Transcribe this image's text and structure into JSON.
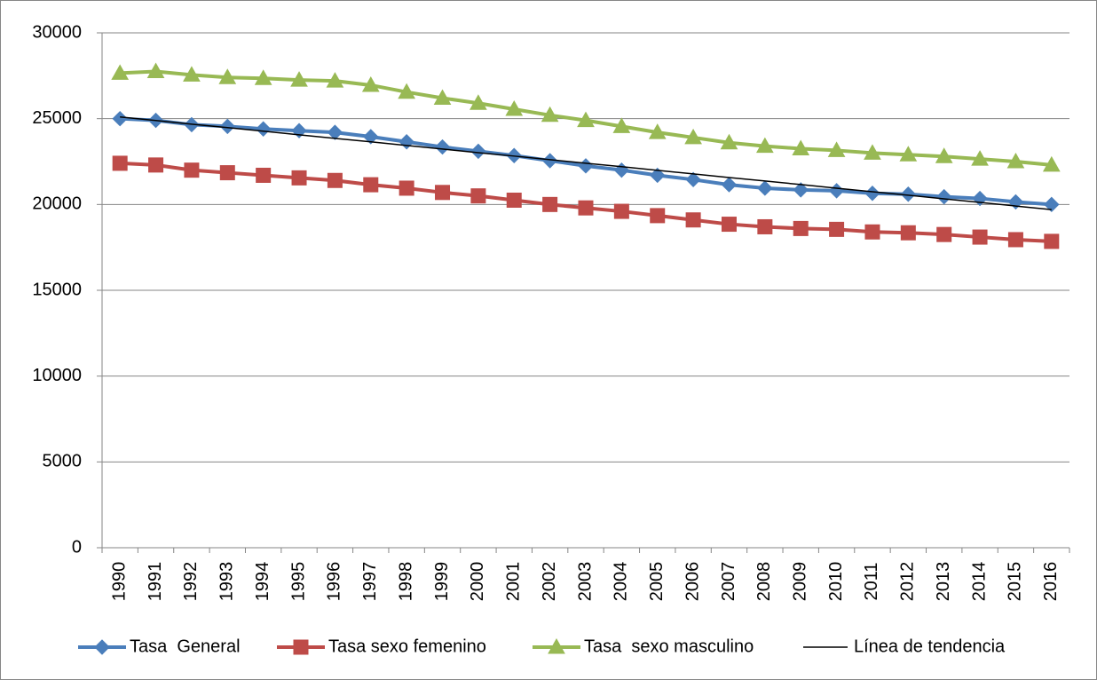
{
  "chart_data": {
    "type": "line",
    "categories": [
      "1990",
      "1991",
      "1992",
      "1993",
      "1994",
      "1995",
      "1996",
      "1997",
      "1998",
      "1999",
      "2000",
      "2001",
      "2002",
      "2003",
      "2004",
      "2005",
      "2006",
      "2007",
      "2008",
      "2009",
      "2010",
      "2011",
      "2012",
      "2013",
      "2014",
      "2015",
      "2016"
    ],
    "series": [
      {
        "name": "Tasa  General",
        "color": "#4a7ebb",
        "marker": "diamond",
        "values": [
          25000,
          24900,
          24650,
          24550,
          24400,
          24300,
          24200,
          23950,
          23650,
          23350,
          23100,
          22850,
          22550,
          22250,
          22000,
          21700,
          21450,
          21150,
          20950,
          20850,
          20800,
          20650,
          20600,
          20450,
          20350,
          20150,
          20000
        ]
      },
      {
        "name": "Tasa sexo femenino",
        "color": "#be4b48",
        "marker": "square",
        "values": [
          22400,
          22300,
          22000,
          21850,
          21700,
          21550,
          21400,
          21150,
          20950,
          20700,
          20500,
          20250,
          20000,
          19800,
          19600,
          19350,
          19100,
          18850,
          18700,
          18600,
          18550,
          18400,
          18350,
          18250,
          18100,
          17950,
          17850
        ]
      },
      {
        "name": "Tasa  sexo masculino",
        "color": "#98b954",
        "marker": "triangle",
        "values": [
          27650,
          27750,
          27550,
          27400,
          27350,
          27250,
          27200,
          26950,
          26550,
          26200,
          25900,
          25550,
          25200,
          24900,
          24550,
          24200,
          23900,
          23600,
          23400,
          23250,
          23150,
          23000,
          22900,
          22800,
          22650,
          22500,
          22300
        ]
      },
      {
        "name": "Línea de tendencia",
        "color": "#000000",
        "marker": "none",
        "values": [
          25100,
          24890,
          24680,
          24480,
          24270,
          24060,
          23850,
          23650,
          23440,
          23230,
          23020,
          22820,
          22610,
          22400,
          22200,
          21990,
          21780,
          21570,
          21370,
          21160,
          20950,
          20740,
          20540,
          20330,
          20120,
          19910,
          19700
        ]
      }
    ],
    "ylim": [
      0,
      30000
    ],
    "yticks": [
      0,
      5000,
      10000,
      15000,
      20000,
      25000,
      30000
    ],
    "grid": true,
    "legend": "bottom"
  }
}
